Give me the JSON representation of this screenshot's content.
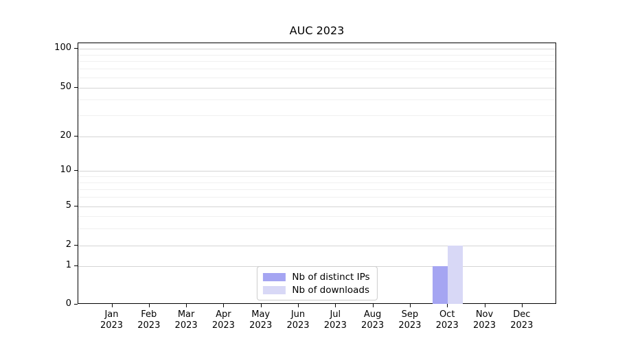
{
  "chart_data": {
    "type": "bar",
    "title": "AUC 2023",
    "categories": [
      {
        "month": "Jan",
        "year": "2023"
      },
      {
        "month": "Feb",
        "year": "2023"
      },
      {
        "month": "Mar",
        "year": "2023"
      },
      {
        "month": "Apr",
        "year": "2023"
      },
      {
        "month": "May",
        "year": "2023"
      },
      {
        "month": "Jun",
        "year": "2023"
      },
      {
        "month": "Jul",
        "year": "2023"
      },
      {
        "month": "Aug",
        "year": "2023"
      },
      {
        "month": "Sep",
        "year": "2023"
      },
      {
        "month": "Oct",
        "year": "2023"
      },
      {
        "month": "Nov",
        "year": "2023"
      },
      {
        "month": "Dec",
        "year": "2023"
      }
    ],
    "series": [
      {
        "name": "Nb of distinct IPs",
        "color": "#a5a5f2",
        "values": [
          0,
          0,
          0,
          0,
          0,
          0,
          0,
          0,
          0,
          1,
          0,
          0
        ]
      },
      {
        "name": "Nb of downloads",
        "color": "#d8d8f6",
        "values": [
          0,
          0,
          0,
          0,
          0,
          0,
          0,
          0,
          0,
          2,
          0,
          0
        ]
      }
    ],
    "yticks": [
      0,
      1,
      2,
      5,
      10,
      20,
      50,
      100
    ],
    "ylim": [
      0,
      110
    ],
    "yscale": "symlog",
    "xlabel": "",
    "ylabel": "",
    "grid": true,
    "legend_position": "lower center"
  }
}
